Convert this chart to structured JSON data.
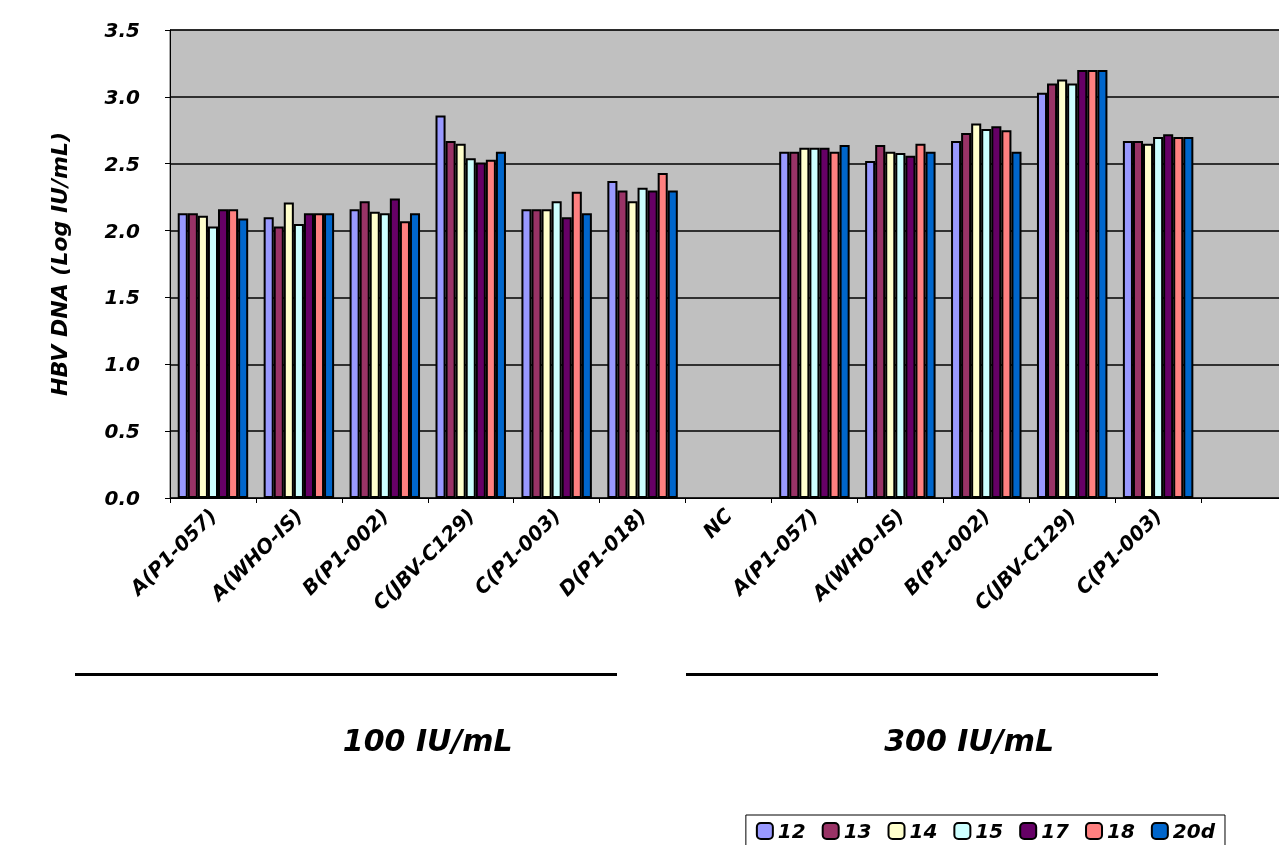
{
  "chart_data": {
    "type": "bar",
    "ylabel": "HBV DNA (Log IU/mL)",
    "categories": [
      "A(P1-057)",
      "A(WHO-IS)",
      "B(P1-002)",
      "C(JBV-C129)",
      "C(P1-003)",
      "D(P1-018)",
      "NC",
      "A(P1-057)",
      "A(WHO-IS)",
      "B(P1-002)",
      "C(JBV-C129)",
      "C(P1-003)",
      null
    ],
    "series": [
      {
        "name": "12",
        "color": "#9999ff",
        "values": [
          2.13,
          2.1,
          2.16,
          2.86,
          2.16,
          2.37,
          null,
          2.59,
          2.52,
          2.67,
          3.03,
          2.67,
          null
        ]
      },
      {
        "name": "13",
        "color": "#993366",
        "values": [
          2.13,
          2.03,
          2.22,
          2.67,
          2.16,
          2.3,
          null,
          2.59,
          2.64,
          2.73,
          3.1,
          2.67,
          null
        ]
      },
      {
        "name": "14",
        "color": "#ffffcc",
        "values": [
          2.11,
          2.21,
          2.14,
          2.65,
          2.16,
          2.22,
          null,
          2.62,
          2.59,
          2.8,
          3.13,
          2.65,
          null
        ]
      },
      {
        "name": "15",
        "color": "#ccffff",
        "values": [
          2.03,
          2.05,
          2.13,
          2.54,
          2.22,
          2.32,
          null,
          2.62,
          2.58,
          2.76,
          3.1,
          2.7,
          null
        ]
      },
      {
        "name": "17",
        "color": "#660066",
        "values": [
          2.16,
          2.13,
          2.24,
          2.51,
          2.1,
          2.3,
          null,
          2.62,
          2.56,
          2.78,
          3.2,
          2.72,
          null
        ]
      },
      {
        "name": "18",
        "color": "#ff8080",
        "values": [
          2.16,
          2.13,
          2.07,
          2.53,
          2.29,
          2.43,
          null,
          2.59,
          2.65,
          2.75,
          3.2,
          2.7,
          null
        ]
      },
      {
        "name": "20d",
        "color": "#0066cc",
        "values": [
          2.09,
          2.13,
          2.13,
          2.59,
          2.13,
          2.3,
          null,
          2.64,
          2.59,
          2.59,
          3.2,
          2.7,
          null
        ]
      }
    ],
    "ylim": [
      0,
      3.5
    ],
    "yticks": [
      {
        "value": 0,
        "label": "0.0"
      },
      0.5,
      {
        "value": 1,
        "label": "1.0"
      },
      1.5,
      {
        "value": 2,
        "label": "2.0"
      },
      2.5,
      {
        "value": 3,
        "label": "3.0"
      },
      3.5
    ],
    "grid": "y",
    "legend": "bottom right",
    "annotations": [
      "100 IU/mL",
      "300 IU/mL"
    ]
  }
}
